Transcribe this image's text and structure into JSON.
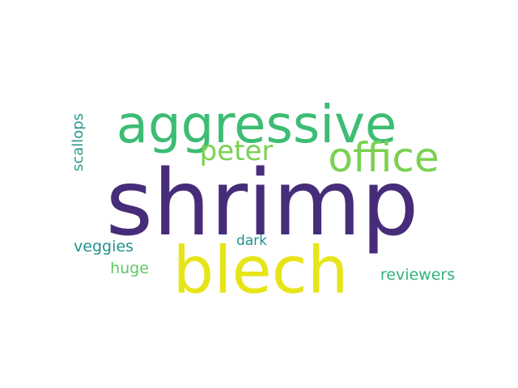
{
  "words": [
    {
      "text": "shrimp",
      "color": "#472c7a",
      "orientation": "horizontal"
    },
    {
      "text": "blech",
      "color": "#e7e419",
      "orientation": "horizontal"
    },
    {
      "text": "aggressive",
      "color": "#3dbc74",
      "orientation": "horizontal"
    },
    {
      "text": "office",
      "color": "#7ad151",
      "orientation": "horizontal"
    },
    {
      "text": "peter",
      "color": "#7ad151",
      "orientation": "horizontal"
    },
    {
      "text": "scallops",
      "color": "#2a9a8a",
      "orientation": "vertical"
    },
    {
      "text": "veggies",
      "color": "#21918c",
      "orientation": "horizontal"
    },
    {
      "text": "dark",
      "color": "#21918c",
      "orientation": "horizontal"
    },
    {
      "text": "huge",
      "color": "#5ec962",
      "orientation": "horizontal"
    },
    {
      "text": "reviewers",
      "color": "#2fb47c",
      "orientation": "horizontal"
    }
  ]
}
